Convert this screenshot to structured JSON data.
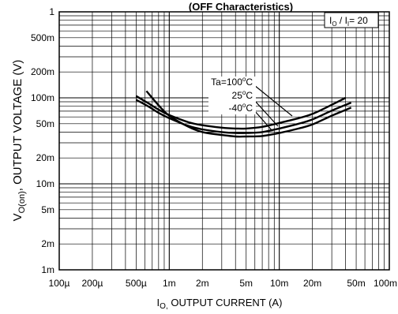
{
  "chart_data": {
    "type": "line",
    "title": "(OFF Characteristics)",
    "xlabel": {
      "main": "I",
      "sub": "O,",
      "rest": " OUTPUT CURRENT (A)"
    },
    "ylabel": {
      "main": "V",
      "sub": "O(on)",
      "rest": ", OUTPUT VOLTAGE (V)"
    },
    "x_scale": "log",
    "y_scale": "log",
    "xlim": [
      0.0001,
      0.1
    ],
    "ylim": [
      0.001,
      1
    ],
    "x_ticks": [
      {
        "value": 0.0001,
        "label": "100µ"
      },
      {
        "value": 0.0002,
        "label": "200µ"
      },
      {
        "value": 0.0005,
        "label": "500µ"
      },
      {
        "value": 0.001,
        "label": "1m"
      },
      {
        "value": 0.002,
        "label": "2m"
      },
      {
        "value": 0.005,
        "label": "5m"
      },
      {
        "value": 0.01,
        "label": "10m"
      },
      {
        "value": 0.02,
        "label": "20m"
      },
      {
        "value": 0.05,
        "label": "50m"
      },
      {
        "value": 0.1,
        "label": "100m"
      }
    ],
    "y_ticks": [
      {
        "value": 1,
        "label": "1"
      },
      {
        "value": 0.5,
        "label": "500m"
      },
      {
        "value": 0.2,
        "label": "200m"
      },
      {
        "value": 0.1,
        "label": "100m"
      },
      {
        "value": 0.05,
        "label": "50m"
      },
      {
        "value": 0.02,
        "label": "20m"
      },
      {
        "value": 0.01,
        "label": "10m"
      },
      {
        "value": 0.005,
        "label": "5m"
      },
      {
        "value": 0.002,
        "label": "2m"
      },
      {
        "value": 0.001,
        "label": "1m"
      }
    ],
    "grid": true,
    "legend_box": {
      "text_main": "I",
      "text_sub1": "O",
      "text_mid": " / I",
      "text_sub2": "I",
      "text_end": "= 20",
      "position": "top-right"
    },
    "series_labels": [
      {
        "main": "Ta=100",
        "sup": "o",
        "end": "C"
      },
      {
        "main": "25",
        "sup": "o",
        "end": "C"
      },
      {
        "main": "-40",
        "sup": "o",
        "end": "C"
      }
    ],
    "series": [
      {
        "name": "100°C",
        "points": [
          [
            0.0005,
            0.105
          ],
          [
            0.00065,
            0.086
          ],
          [
            0.0008,
            0.073
          ],
          [
            0.001,
            0.063
          ],
          [
            0.0015,
            0.052
          ],
          [
            0.002,
            0.048
          ],
          [
            0.003,
            0.045
          ],
          [
            0.004,
            0.044
          ],
          [
            0.005,
            0.044
          ],
          [
            0.007,
            0.046
          ],
          [
            0.01,
            0.051
          ],
          [
            0.015,
            0.058
          ],
          [
            0.02,
            0.065
          ],
          [
            0.03,
            0.083
          ],
          [
            0.04,
            0.1
          ]
        ]
      },
      {
        "name": "25°C",
        "points": [
          [
            0.0005,
            0.095
          ],
          [
            0.00065,
            0.079
          ],
          [
            0.0008,
            0.067
          ],
          [
            0.001,
            0.058
          ],
          [
            0.0015,
            0.047
          ],
          [
            0.002,
            0.043
          ],
          [
            0.003,
            0.04
          ],
          [
            0.004,
            0.039
          ],
          [
            0.005,
            0.039
          ],
          [
            0.007,
            0.04
          ],
          [
            0.01,
            0.044
          ],
          [
            0.015,
            0.05
          ],
          [
            0.02,
            0.056
          ],
          [
            0.03,
            0.071
          ],
          [
            0.045,
            0.088
          ]
        ]
      },
      {
        "name": "-40°C",
        "points": [
          [
            0.00062,
            0.12
          ],
          [
            0.0008,
            0.082
          ],
          [
            0.001,
            0.062
          ],
          [
            0.0015,
            0.046
          ],
          [
            0.002,
            0.04
          ],
          [
            0.003,
            0.037
          ],
          [
            0.004,
            0.0355
          ],
          [
            0.005,
            0.0355
          ],
          [
            0.007,
            0.036
          ],
          [
            0.01,
            0.039
          ],
          [
            0.015,
            0.044
          ],
          [
            0.02,
            0.049
          ],
          [
            0.03,
            0.062
          ],
          [
            0.045,
            0.077
          ]
        ]
      }
    ]
  }
}
